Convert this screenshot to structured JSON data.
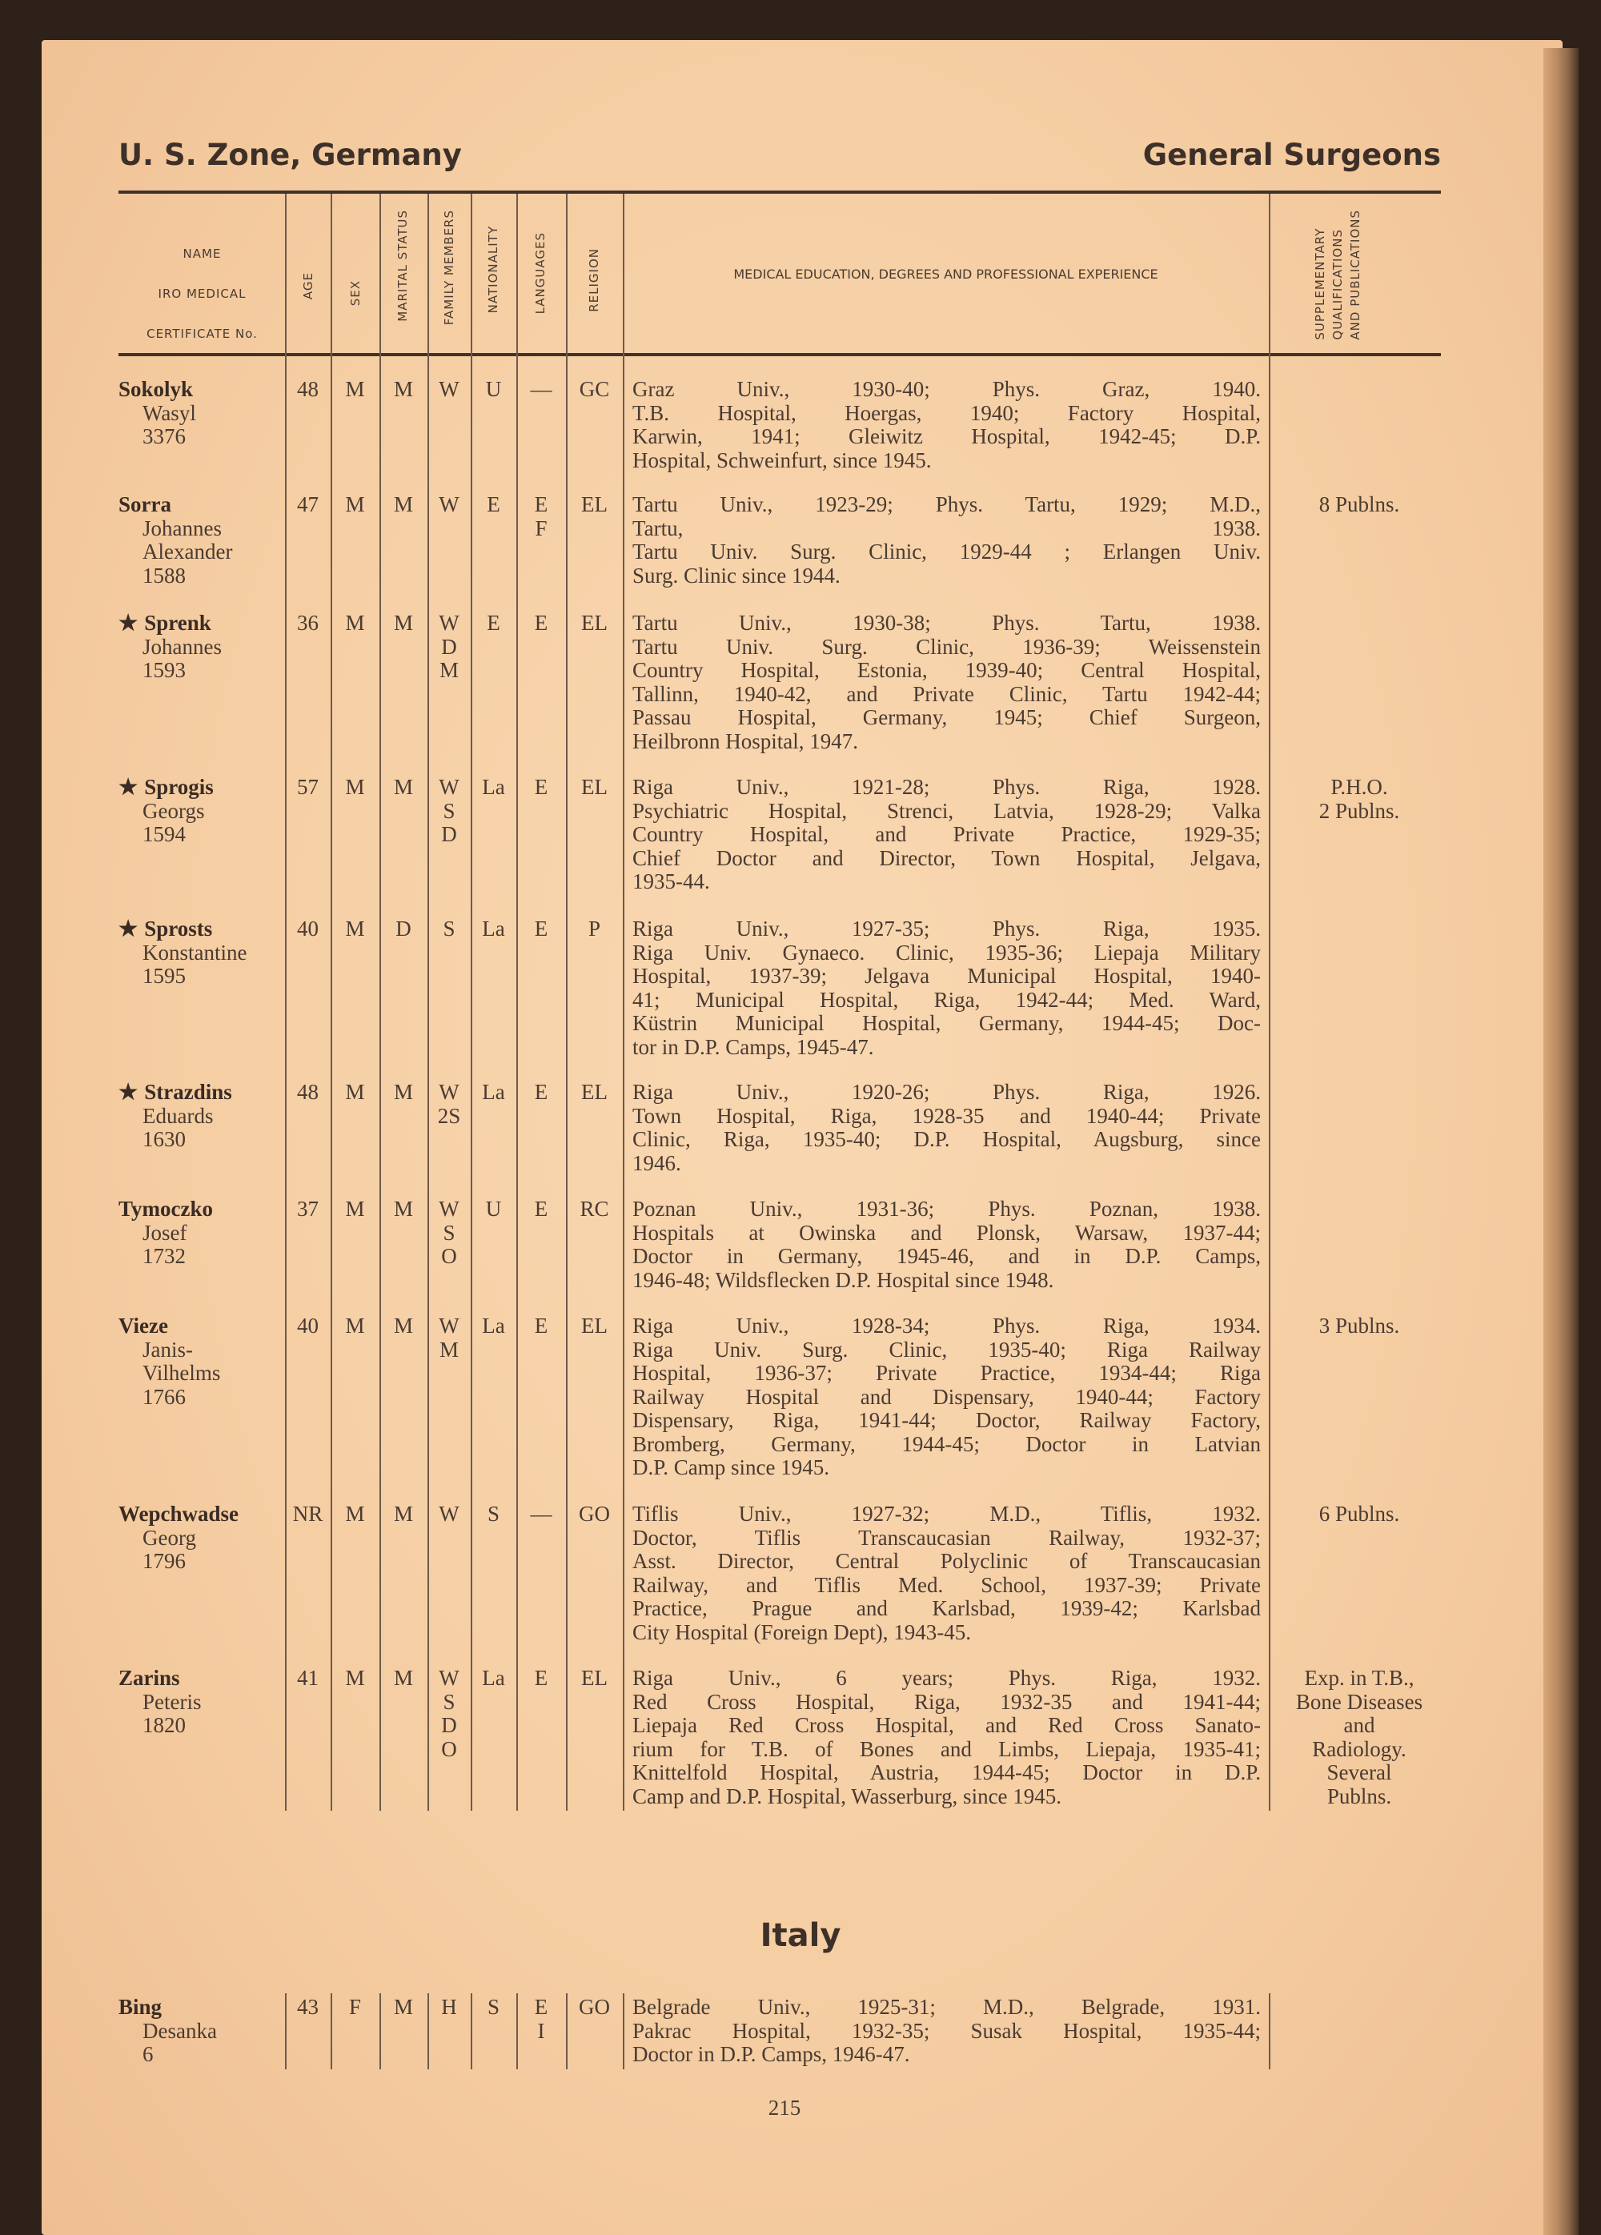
{
  "header": {
    "left": "U. S. Zone, Germany",
    "right": "General Surgeons"
  },
  "columns": {
    "name": [
      "NAME",
      "IRO MEDICAL",
      "CERTIFICATE No."
    ],
    "age": "AGE",
    "sex": "SEX",
    "marital": "MARITAL STATUS",
    "family": "FAMILY MEMBERS",
    "nationality": "NATIONALITY",
    "languages": "LANGUAGES",
    "religion": "RELIGION",
    "education": "MEDICAL EDUCATION, DEGREES AND PROFESSIONAL EXPERIENCE",
    "supplementary": [
      "SUPPLEMENTARY",
      "QUALIFICATIONS",
      "AND PUBLICATIONS"
    ]
  },
  "star_symbol": "★",
  "rows": [
    {
      "star": false,
      "surname": "Sokolyk",
      "given": [
        "Wasyl"
      ],
      "cert": "3376",
      "age": "48",
      "sex": "M",
      "marital": "M",
      "family": [
        "W"
      ],
      "nationality": "U",
      "languages": [
        "—"
      ],
      "religion": "GC",
      "education": [
        "Graz Univ., 1930-40; Phys. Graz, 1940.",
        "T.B. Hospital, Hoergas, 1940; Factory Hospital,",
        "Karwin, 1941; Gleiwitz Hospital, 1942-45; D.P.",
        "Hospital, Schweinfurt, since 1945."
      ],
      "supplementary": []
    },
    {
      "star": false,
      "surname": "Sorra",
      "given": [
        "Johannes",
        "Alexander"
      ],
      "cert": "1588",
      "age": "47",
      "sex": "M",
      "marital": "M",
      "family": [
        "W"
      ],
      "nationality": "E",
      "languages": [
        "E",
        "F"
      ],
      "religion": "EL",
      "education": [
        "Tartu Univ., 1923-29; Phys. Tartu, 1929; M.D.,",
        "Tartu, 1938.",
        "Tartu Univ. Surg. Clinic, 1929-44 ; Erlangen Univ.",
        "Surg. Clinic since 1944."
      ],
      "supplementary": [
        "8 Publns."
      ]
    },
    {
      "star": true,
      "surname": "Sprenk",
      "given": [
        "Johannes"
      ],
      "cert": "1593",
      "age": "36",
      "sex": "M",
      "marital": "M",
      "family": [
        "W",
        "D",
        "M"
      ],
      "nationality": "E",
      "languages": [
        "E"
      ],
      "religion": "EL",
      "education": [
        "Tartu Univ., 1930-38; Phys. Tartu, 1938.",
        "Tartu Univ. Surg. Clinic, 1936-39; Weissenstein",
        "Country Hospital, Estonia, 1939-40; Central Hospital,",
        "Tallinn, 1940-42, and Private Clinic, Tartu 1942-44;",
        "Passau Hospital, Germany, 1945; Chief Surgeon,",
        "Heilbronn Hospital, 1947."
      ],
      "supplementary": []
    },
    {
      "star": true,
      "surname": "Sprogis",
      "given": [
        "Georgs"
      ],
      "cert": "1594",
      "age": "57",
      "sex": "M",
      "marital": "M",
      "family": [
        "W",
        "S",
        "D"
      ],
      "nationality": "La",
      "languages": [
        "E"
      ],
      "religion": "EL",
      "education": [
        "Riga Univ., 1921-28; Phys. Riga, 1928.",
        "Psychiatric Hospital, Strenci, Latvia, 1928-29; Valka",
        "Country Hospital, and Private Practice, 1929-35;",
        "Chief Doctor and Director, Town Hospital, Jelgava,",
        "1935-44."
      ],
      "supplementary": [
        "P.H.O.",
        "2 Publns."
      ]
    },
    {
      "star": true,
      "surname": "Sprosts",
      "given": [
        "Konstantine"
      ],
      "cert": "1595",
      "age": "40",
      "sex": "M",
      "marital": "D",
      "family": [
        "S"
      ],
      "nationality": "La",
      "languages": [
        "E"
      ],
      "religion": "P",
      "education": [
        "Riga Univ., 1927-35; Phys. Riga, 1935.",
        "Riga Univ. Gynaeco. Clinic, 1935-36; Liepaja Military",
        "Hospital, 1937-39; Jelgava Municipal Hospital, 1940-",
        "41; Municipal Hospital, Riga, 1942-44; Med. Ward,",
        "Küstrin Municipal Hospital, Germany, 1944-45; Doc-",
        "tor in D.P. Camps, 1945-47."
      ],
      "supplementary": []
    },
    {
      "star": true,
      "surname": "Strazdins",
      "given": [
        "Eduards"
      ],
      "cert": "1630",
      "age": "48",
      "sex": "M",
      "marital": "M",
      "family": [
        "W",
        "2S"
      ],
      "nationality": "La",
      "languages": [
        "E"
      ],
      "religion": "EL",
      "education": [
        "Riga Univ., 1920-26; Phys. Riga, 1926.",
        "Town Hospital, Riga, 1928-35 and 1940-44; Private",
        "Clinic, Riga, 1935-40; D.P. Hospital, Augsburg, since",
        "1946."
      ],
      "supplementary": []
    },
    {
      "star": false,
      "surname": "Tymoczko",
      "given": [
        "Josef"
      ],
      "cert": "1732",
      "age": "37",
      "sex": "M",
      "marital": "M",
      "family": [
        "W",
        "S",
        "O"
      ],
      "nationality": "U",
      "languages": [
        "E"
      ],
      "religion": "RC",
      "education": [
        "Poznan Univ., 1931-36; Phys. Poznan, 1938.",
        "Hospitals at Owinska and Plonsk, Warsaw, 1937-44;",
        "Doctor in Germany, 1945-46, and in D.P. Camps,",
        "1946-48; Wildsflecken D.P. Hospital since 1948."
      ],
      "supplementary": []
    },
    {
      "star": false,
      "surname": "Vieze",
      "given": [
        "Janis-",
        "Vilhelms"
      ],
      "cert": "1766",
      "age": "40",
      "sex": "M",
      "marital": "M",
      "family": [
        "W",
        "M"
      ],
      "nationality": "La",
      "languages": [
        "E"
      ],
      "religion": "EL",
      "education": [
        "Riga Univ., 1928-34; Phys. Riga, 1934.",
        "Riga Univ. Surg. Clinic, 1935-40; Riga Railway",
        "Hospital, 1936-37; Private Practice, 1934-44; Riga",
        "Railway Hospital and Dispensary, 1940-44; Factory",
        "Dispensary, Riga, 1941-44; Doctor, Railway Factory,",
        "Bromberg, Germany, 1944-45; Doctor in Latvian",
        "D.P. Camp since 1945."
      ],
      "supplementary": [
        "3 Publns."
      ]
    },
    {
      "star": false,
      "surname": "Wepchwadse",
      "given": [
        "Georg"
      ],
      "cert": "1796",
      "age": "NR",
      "sex": "M",
      "marital": "M",
      "family": [
        "W"
      ],
      "nationality": "S",
      "languages": [
        "—"
      ],
      "religion": "GO",
      "education": [
        "Tiflis Univ., 1927-32; M.D., Tiflis, 1932.",
        "Doctor, Tiflis Transcaucasian Railway, 1932-37;",
        "Asst. Director, Central Polyclinic of Transcaucasian",
        "Railway, and Tiflis Med. School, 1937-39; Private",
        "Practice, Prague and Karlsbad, 1939-42; Karlsbad",
        "City Hospital (Foreign Dept), 1943-45."
      ],
      "supplementary": [
        "6 Publns."
      ]
    },
    {
      "star": false,
      "surname": "Zarins",
      "given": [
        "Peteris"
      ],
      "cert": "1820",
      "age": "41",
      "sex": "M",
      "marital": "M",
      "family": [
        "W",
        "S",
        "D",
        "O"
      ],
      "nationality": "La",
      "languages": [
        "E"
      ],
      "religion": "EL",
      "education": [
        "Riga Univ., 6 years; Phys. Riga, 1932.",
        "Red Cross Hospital, Riga, 1932-35 and 1941-44;",
        "Liepaja Red Cross Hospital, and Red Cross Sanato-",
        "rium for T.B. of Bones and Limbs, Liepaja, 1935-41;",
        "Knittelfold Hospital, Austria, 1944-45; Doctor in D.P.",
        "Camp and D.P. Hospital, Wasserburg, since 1945."
      ],
      "supplementary": [
        "Exp. in T.B.,",
        "Bone Diseases",
        "and",
        "Radiology.",
        "Several",
        "Publns."
      ]
    }
  ],
  "section2": {
    "title": "Italy",
    "rows": [
      {
        "star": false,
        "surname": "Bing",
        "given": [
          "Desanka"
        ],
        "cert": "6",
        "age": "43",
        "sex": "F",
        "marital": "M",
        "family": [
          "H"
        ],
        "nationality": "S",
        "languages": [
          "E",
          "I"
        ],
        "religion": "GO",
        "education": [
          "Belgrade Univ., 1925-31; M.D., Belgrade, 1931.",
          "Pakrac Hospital, 1932-35; Susak Hospital, 1935-44;",
          "Doctor in D.P. Camps, 1946-47."
        ],
        "supplementary": []
      }
    ]
  },
  "page_number": "215"
}
